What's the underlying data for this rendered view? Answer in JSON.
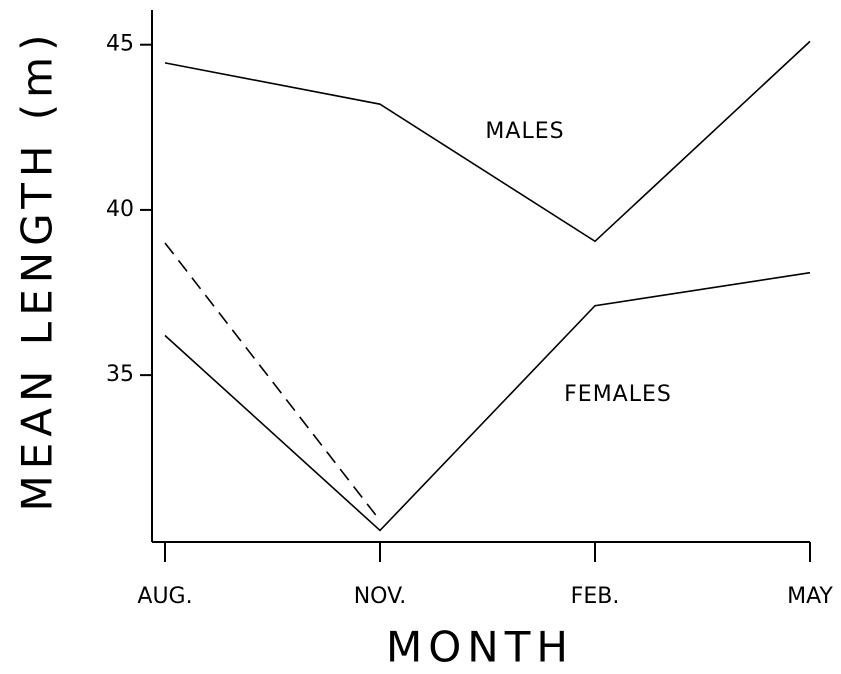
{
  "chart_data": {
    "type": "line",
    "x_label": "MONTH",
    "y_label": "MEAN LENGTH (m)",
    "categories": [
      "AUG.",
      "NOV.",
      "FEB.",
      "MAY"
    ],
    "series": [
      {
        "name": "MALES",
        "color": "#000000",
        "values": [
          44.45,
          43.2,
          39.05,
          45.1
        ]
      },
      {
        "name": "FEMALES",
        "color": "#000000",
        "values": [
          36.2,
          30.3,
          37.1,
          38.1
        ]
      },
      {
        "color": "#000000",
        "dashed": true,
        "values": [
          39.0,
          30.6,
          null,
          null
        ]
      }
    ],
    "ylim": [
      29.95,
      46.05
    ],
    "yticks": [
      35,
      40,
      45
    ],
    "grid": false
  }
}
